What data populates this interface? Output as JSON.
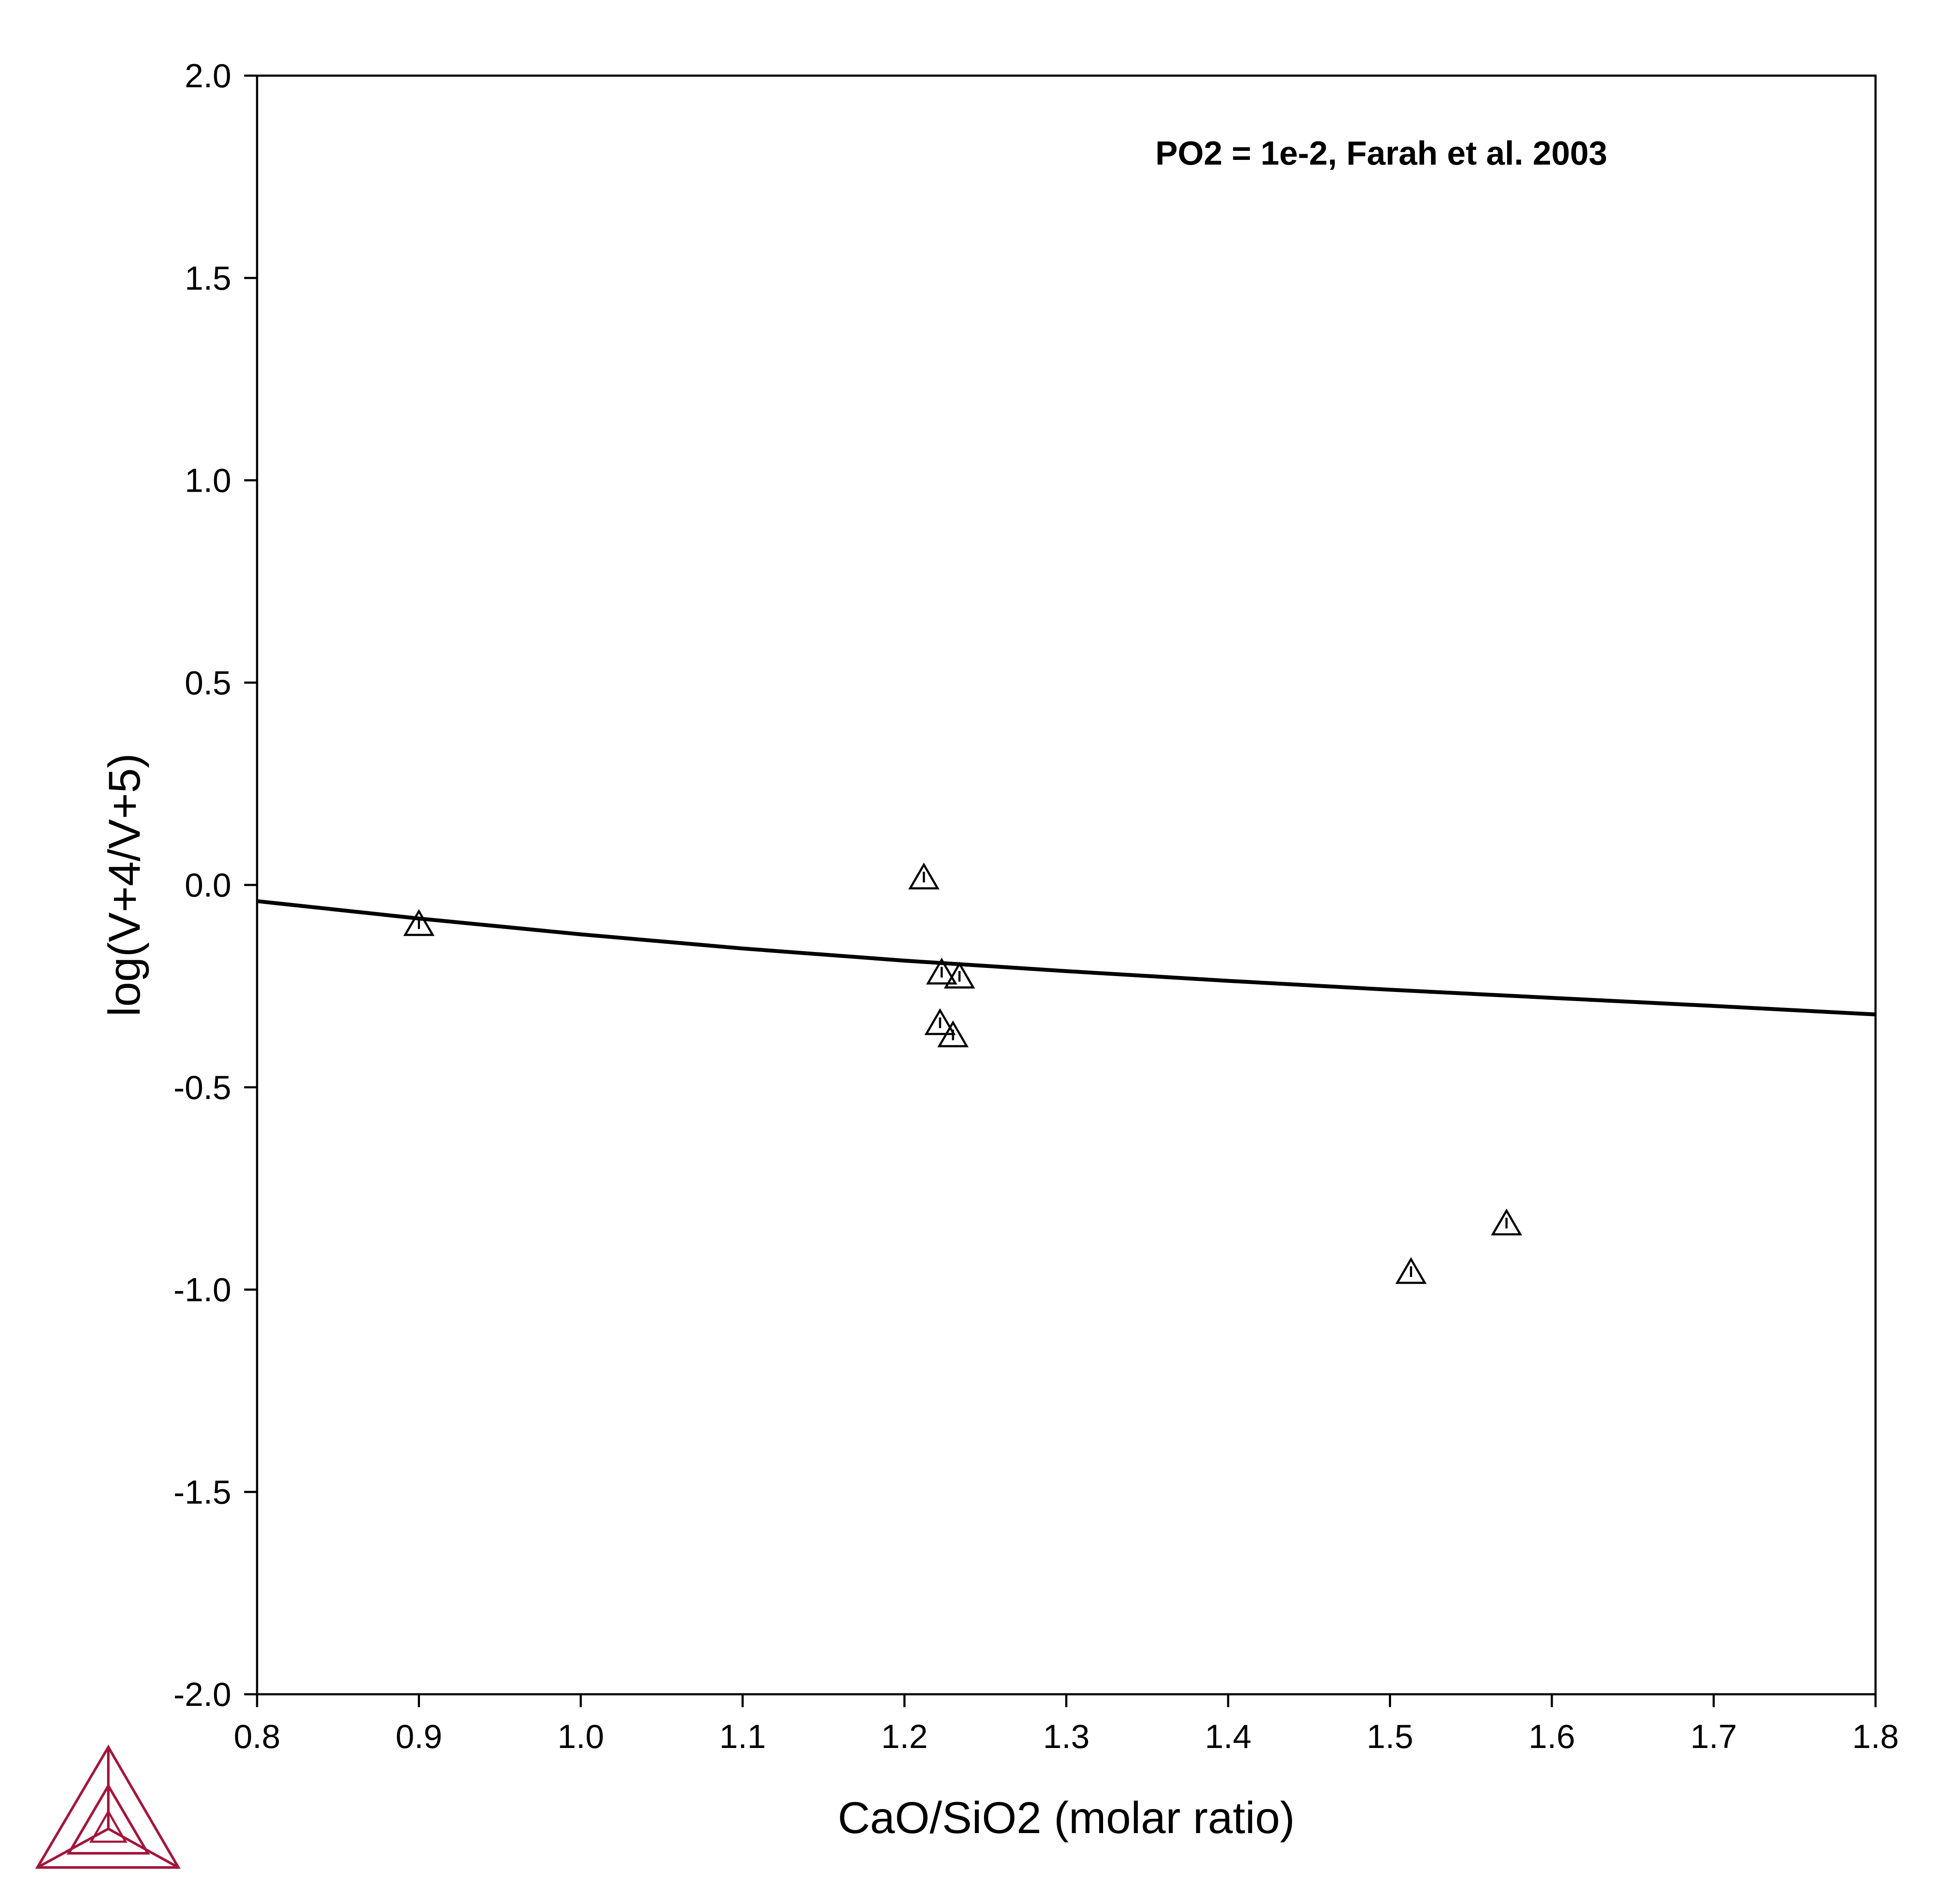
{
  "chart_data": {
    "type": "scatter",
    "title": "",
    "xlabel": "CaO/SiO2 (molar ratio)",
    "ylabel": "log(V+4/V+5)",
    "xlim": [
      0.8,
      1.8
    ],
    "ylim": [
      -2.0,
      2.0
    ],
    "xticks": [
      0.8,
      0.9,
      1.0,
      1.1,
      1.2,
      1.3,
      1.4,
      1.5,
      1.6,
      1.7,
      1.8
    ],
    "yticks": [
      -2.0,
      -1.5,
      -1.0,
      -0.5,
      0.0,
      0.5,
      1.0,
      1.5,
      2.0
    ],
    "xtick_labels": [
      "0.8",
      "0.9",
      "1.0",
      "1.1",
      "1.2",
      "1.3",
      "1.4",
      "1.5",
      "1.6",
      "1.7",
      "1.8"
    ],
    "ytick_labels": [
      "-2.0",
      "-1.5",
      "-1.0",
      "-0.5",
      "0.0",
      "0.5",
      "1.0",
      "1.5",
      "2.0"
    ],
    "grid": false,
    "annotations": [
      {
        "text": "PO2 = 1e-2, Farah et al. 2003",
        "x": 1.355,
        "y": 1.78
      }
    ],
    "series": [
      {
        "type": "line",
        "color": "#000000",
        "x": [
          0.8,
          0.9,
          1.0,
          1.1,
          1.2,
          1.3,
          1.4,
          1.5,
          1.6,
          1.7,
          1.8
        ],
        "y": [
          -0.04,
          -0.083,
          -0.122,
          -0.157,
          -0.187,
          -0.213,
          -0.237,
          -0.259,
          -0.279,
          -0.299,
          -0.32
        ]
      },
      {
        "type": "scatter",
        "marker": "triangle",
        "color": "#000000",
        "x": [
          0.9,
          1.212,
          1.223,
          1.234,
          1.222,
          1.23,
          1.513,
          1.572
        ],
        "y": [
          -0.1,
          0.015,
          -0.22,
          -0.23,
          -0.345,
          -0.375,
          -0.96,
          -0.84
        ]
      }
    ]
  },
  "logo": {
    "name": "thermo-calc-logo",
    "color": "#a3163c"
  }
}
